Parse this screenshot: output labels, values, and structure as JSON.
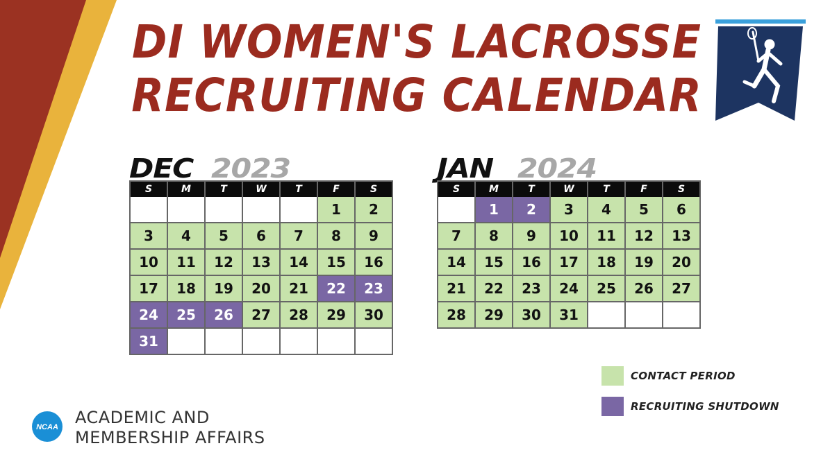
{
  "title": {
    "line1": "DI WOMEN'S LACROSSE",
    "line2": "RECRUITING CALENDAR"
  },
  "colors": {
    "title": "#9b2b1f",
    "stripe_red": "#9b3222",
    "stripe_gold": "#e9b33c",
    "contact": "#c7e3ab",
    "shutdown": "#7a67a4",
    "badge_navy": "#1d3461",
    "badge_top": "#3aa0db"
  },
  "badge_icon": "lacrosse-player-icon",
  "weekdays": [
    "S",
    "M",
    "T",
    "W",
    "T",
    "F",
    "S"
  ],
  "december": {
    "month": "DEC",
    "year": "2023",
    "days": [
      {
        "d": "",
        "s": "empty"
      },
      {
        "d": "",
        "s": "empty"
      },
      {
        "d": "",
        "s": "empty"
      },
      {
        "d": "",
        "s": "empty"
      },
      {
        "d": "",
        "s": "empty"
      },
      {
        "d": "1",
        "s": "contact"
      },
      {
        "d": "2",
        "s": "contact"
      },
      {
        "d": "3",
        "s": "contact"
      },
      {
        "d": "4",
        "s": "contact"
      },
      {
        "d": "5",
        "s": "contact"
      },
      {
        "d": "6",
        "s": "contact"
      },
      {
        "d": "7",
        "s": "contact"
      },
      {
        "d": "8",
        "s": "contact"
      },
      {
        "d": "9",
        "s": "contact"
      },
      {
        "d": "10",
        "s": "contact"
      },
      {
        "d": "11",
        "s": "contact"
      },
      {
        "d": "12",
        "s": "contact"
      },
      {
        "d": "13",
        "s": "contact"
      },
      {
        "d": "14",
        "s": "contact"
      },
      {
        "d": "15",
        "s": "contact"
      },
      {
        "d": "16",
        "s": "contact"
      },
      {
        "d": "17",
        "s": "contact"
      },
      {
        "d": "18",
        "s": "contact"
      },
      {
        "d": "19",
        "s": "contact"
      },
      {
        "d": "20",
        "s": "contact"
      },
      {
        "d": "21",
        "s": "contact"
      },
      {
        "d": "22",
        "s": "shutdown"
      },
      {
        "d": "23",
        "s": "shutdown"
      },
      {
        "d": "24",
        "s": "shutdown"
      },
      {
        "d": "25",
        "s": "shutdown"
      },
      {
        "d": "26",
        "s": "shutdown"
      },
      {
        "d": "27",
        "s": "contact"
      },
      {
        "d": "28",
        "s": "contact"
      },
      {
        "d": "29",
        "s": "contact"
      },
      {
        "d": "30",
        "s": "contact"
      },
      {
        "d": "31",
        "s": "shutdown"
      },
      {
        "d": "",
        "s": "empty"
      },
      {
        "d": "",
        "s": "empty"
      },
      {
        "d": "",
        "s": "empty"
      },
      {
        "d": "",
        "s": "empty"
      },
      {
        "d": "",
        "s": "empty"
      },
      {
        "d": "",
        "s": "empty"
      }
    ]
  },
  "january": {
    "month": "JAN",
    "year": "2024",
    "days": [
      {
        "d": "",
        "s": "empty"
      },
      {
        "d": "1",
        "s": "shutdown"
      },
      {
        "d": "2",
        "s": "shutdown"
      },
      {
        "d": "3",
        "s": "contact"
      },
      {
        "d": "4",
        "s": "contact"
      },
      {
        "d": "5",
        "s": "contact"
      },
      {
        "d": "6",
        "s": "contact"
      },
      {
        "d": "7",
        "s": "contact"
      },
      {
        "d": "8",
        "s": "contact"
      },
      {
        "d": "9",
        "s": "contact"
      },
      {
        "d": "10",
        "s": "contact"
      },
      {
        "d": "11",
        "s": "contact"
      },
      {
        "d": "12",
        "s": "contact"
      },
      {
        "d": "13",
        "s": "contact"
      },
      {
        "d": "14",
        "s": "contact"
      },
      {
        "d": "15",
        "s": "contact"
      },
      {
        "d": "16",
        "s": "contact"
      },
      {
        "d": "17",
        "s": "contact"
      },
      {
        "d": "18",
        "s": "contact"
      },
      {
        "d": "19",
        "s": "contact"
      },
      {
        "d": "20",
        "s": "contact"
      },
      {
        "d": "21",
        "s": "contact"
      },
      {
        "d": "22",
        "s": "contact"
      },
      {
        "d": "23",
        "s": "contact"
      },
      {
        "d": "24",
        "s": "contact"
      },
      {
        "d": "25",
        "s": "contact"
      },
      {
        "d": "26",
        "s": "contact"
      },
      {
        "d": "27",
        "s": "contact"
      },
      {
        "d": "28",
        "s": "contact"
      },
      {
        "d": "29",
        "s": "contact"
      },
      {
        "d": "30",
        "s": "contact"
      },
      {
        "d": "31",
        "s": "contact"
      },
      {
        "d": "",
        "s": "empty"
      },
      {
        "d": "",
        "s": "empty"
      },
      {
        "d": "",
        "s": "empty"
      }
    ]
  },
  "legend": {
    "contact": "CONTACT PERIOD",
    "shutdown": "RECRUITING SHUTDOWN"
  },
  "footer": {
    "logo_text": "NCAA",
    "line1": "ACADEMIC AND",
    "line2": "MEMBERSHIP AFFAIRS"
  }
}
